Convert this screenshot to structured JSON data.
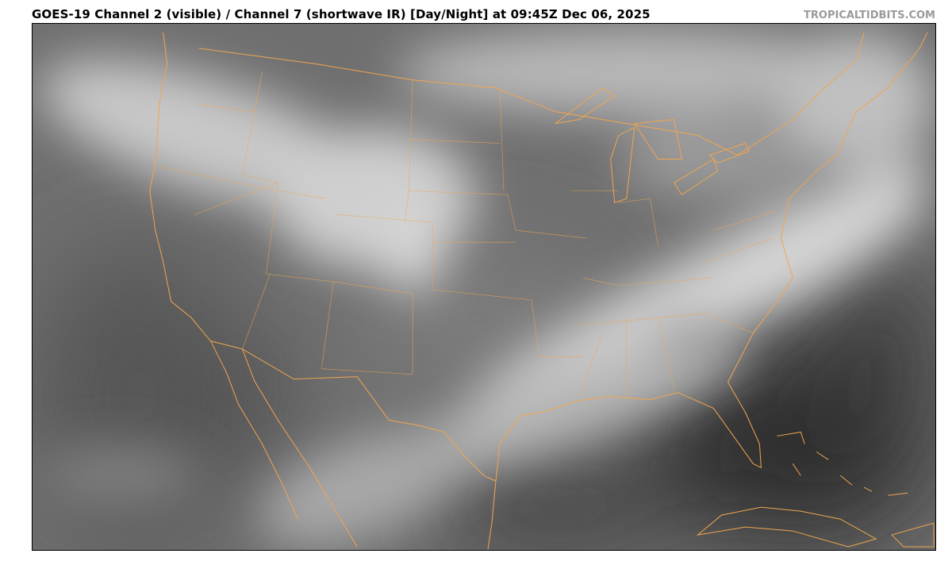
{
  "header": {
    "title": "GOES-19 Channel 2 (visible) / Channel 7 (shortwave IR) [Day/Night] at 09:45Z Dec 06, 2025",
    "credit": "TROPICALTIDBITS.COM"
  },
  "map": {
    "imagery": "satellite-grayscale",
    "region": "Continental United States",
    "boundary_color": "#f0a550"
  }
}
